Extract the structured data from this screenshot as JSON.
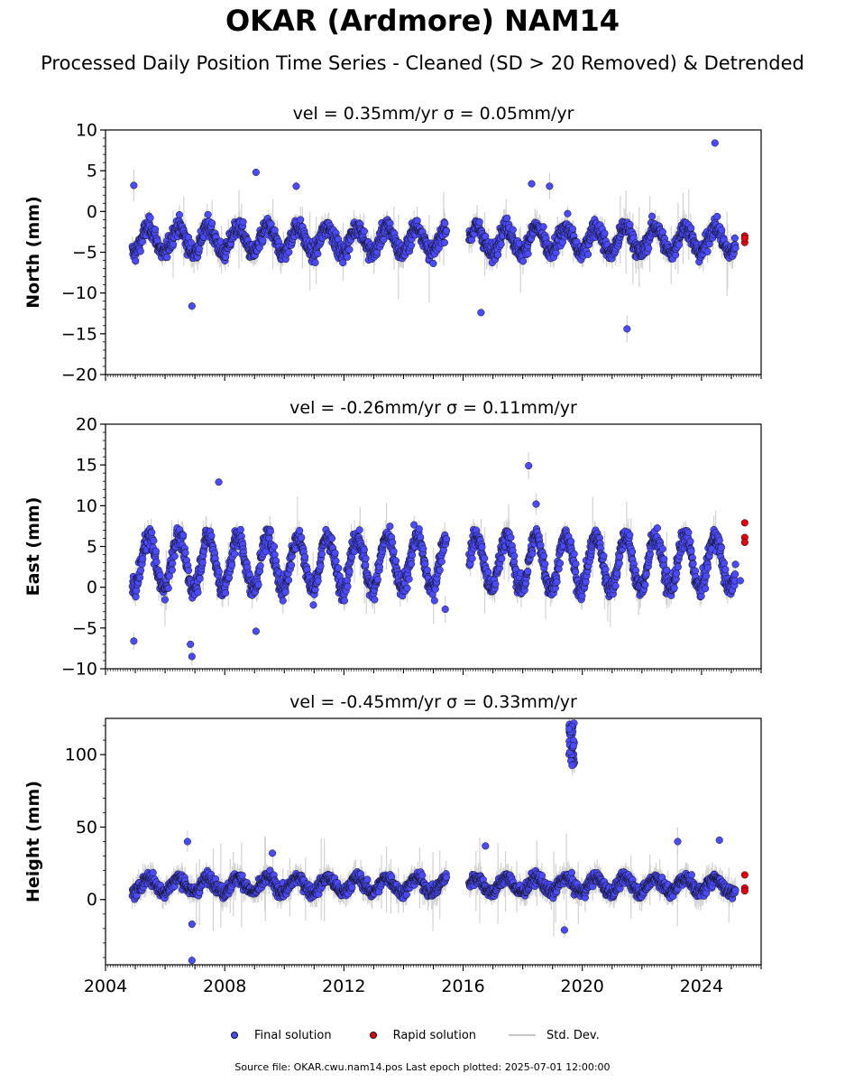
{
  "title": "OKAR (Ardmore) NAM14",
  "subtitle": "Processed Daily Position Time Series - Cleaned (SD > 20 Removed) & Detrended",
  "source_note": "Source file: OKAR.cwu.nam14.pos  Last epoch plotted: 2025-07-01 12:00:00",
  "colors": {
    "final": "#4a4aff",
    "rapid": "#e8000b",
    "std": "#c8c8c8",
    "marker_edge": "#111111"
  },
  "legend": [
    {
      "label": "Final solution",
      "symbol": "dot",
      "color": "#4a4aff"
    },
    {
      "label": "Rapid solution",
      "symbol": "dot",
      "color": "#e8000b"
    },
    {
      "label": "Std. Dev.",
      "symbol": "line",
      "color": "#c8c8c8"
    }
  ],
  "chart_data": [
    {
      "type": "scatter",
      "title": "vel = 0.35mm/yr   σ = 0.05mm/yr",
      "ylabel": "North (mm)",
      "xlim": [
        2004.0,
        2026.0
      ],
      "ylim": [
        -20,
        10
      ],
      "yticks": [
        10,
        5,
        0,
        -5,
        -10,
        -15,
        -20
      ],
      "ytick_labels": [
        "10",
        "5",
        "0",
        "−5",
        "−10",
        "−15",
        "−20"
      ],
      "final": {
        "mean": -3.5,
        "amplitude": 1.6,
        "noise": 1.3,
        "segments": [
          [
            2004.9,
            2015.45
          ],
          [
            2016.2,
            2025.15
          ]
        ],
        "outliers": [
          [
            2004.95,
            3.2
          ],
          [
            2009.05,
            4.8
          ],
          [
            2010.4,
            3.1
          ],
          [
            2024.45,
            8.4
          ],
          [
            2006.9,
            -11.6
          ],
          [
            2016.6,
            -12.4
          ],
          [
            2021.5,
            -14.4
          ],
          [
            2018.3,
            3.4
          ],
          [
            2018.9,
            3.1
          ]
        ]
      },
      "rapid": [
        [
          2025.45,
          -3.0
        ],
        [
          2025.45,
          -3.8
        ],
        [
          2025.45,
          -3.3
        ]
      ]
    },
    {
      "type": "scatter",
      "title": "vel = -0.26mm/yr   σ = 0.11mm/yr",
      "ylabel": "East (mm)",
      "xlim": [
        2004.0,
        2026.0
      ],
      "ylim": [
        -10,
        20
      ],
      "yticks": [
        20,
        15,
        10,
        5,
        0,
        -5,
        -10
      ],
      "ytick_labels": [
        "20",
        "15",
        "10",
        "5",
        "0",
        "−5",
        "−10"
      ],
      "final": {
        "mean": 3.0,
        "amplitude": 3.2,
        "noise": 1.5,
        "segments": [
          [
            2004.9,
            2015.45
          ],
          [
            2016.2,
            2025.15
          ]
        ],
        "outliers": [
          [
            2006.9,
            -8.5
          ],
          [
            2006.85,
            -7.0
          ],
          [
            2004.95,
            -6.6
          ],
          [
            2007.8,
            12.9
          ],
          [
            2018.2,
            14.9
          ],
          [
            2009.05,
            -5.4
          ],
          [
            2018.45,
            10.2
          ],
          [
            2025.3,
            0.8
          ],
          [
            2015.4,
            -2.7
          ]
        ]
      },
      "rapid": [
        [
          2025.45,
          7.9
        ],
        [
          2025.45,
          6.1
        ],
        [
          2025.45,
          5.5
        ]
      ]
    },
    {
      "type": "scatter",
      "title": "vel = -0.45mm/yr   σ = 0.33mm/yr",
      "ylabel": "Height (mm)",
      "xlim": [
        2004.0,
        2026.0
      ],
      "ylim": [
        -45,
        125
      ],
      "yticks": [
        100,
        50,
        0
      ],
      "ytick_labels": [
        "100",
        "50",
        "0"
      ],
      "xticks": [
        2004,
        2008,
        2012,
        2016,
        2020,
        2024
      ],
      "xtick_labels": [
        "2004",
        "2008",
        "2012",
        "2016",
        "2020",
        "2024"
      ],
      "final": {
        "mean": 10.0,
        "amplitude": 5.0,
        "noise": 5.0,
        "segments": [
          [
            2004.9,
            2015.45
          ],
          [
            2016.2,
            2025.15
          ]
        ],
        "outliers": [
          [
            2006.9,
            -42.0
          ],
          [
            2009.6,
            32.0
          ],
          [
            2006.75,
            40.0
          ],
          [
            2016.75,
            37.0
          ],
          [
            2023.2,
            40.0
          ],
          [
            2024.6,
            41.0
          ],
          [
            2019.4,
            -21.0
          ],
          [
            2006.9,
            -17.0
          ]
        ],
        "burst": {
          "x": [
            2019.55,
            2019.75
          ],
          "y": [
            92,
            122
          ],
          "count": 40
        }
      },
      "rapid": [
        [
          2025.45,
          17.0
        ],
        [
          2025.45,
          8.0
        ],
        [
          2025.45,
          6.0
        ]
      ]
    }
  ]
}
